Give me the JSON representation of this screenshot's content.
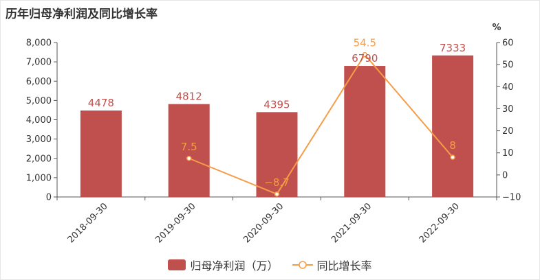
{
  "title": "历年归母净利润及同比增长率",
  "colors": {
    "bar": "#c0504d",
    "line": "#f59d47",
    "axis": "#555555",
    "grid": "#999999",
    "text": "#333333"
  },
  "chart_data": {
    "type": "bar+line",
    "categories": [
      "2018-09-30",
      "2019-09-30",
      "2020-09-30",
      "2021-09-30",
      "2022-09-30"
    ],
    "series": [
      {
        "name": "归母净利润（万）",
        "type": "bar",
        "axis": "left",
        "values": [
          4478,
          4812,
          4395,
          6790,
          7333
        ]
      },
      {
        "name": "同比增长率",
        "type": "line",
        "axis": "right",
        "values": [
          null,
          7.5,
          -8.7,
          54.5,
          8
        ]
      }
    ],
    "left_axis": {
      "min": 0,
      "max": 8000,
      "ticks": [
        "0",
        "1,000",
        "2,000",
        "3,000",
        "4,000",
        "5,000",
        "6,000",
        "7,000",
        "8,000"
      ]
    },
    "right_axis": {
      "unit": "%",
      "min": -10,
      "max": 60,
      "ticks": [
        "−10",
        "0",
        "10",
        "20",
        "30",
        "40",
        "50",
        "60"
      ]
    },
    "bar_labels": [
      "4478",
      "4812",
      "4395",
      "6790",
      "7333"
    ],
    "line_labels": [
      "",
      "7.5",
      "−8.7",
      "54.5",
      "8"
    ],
    "legend": {
      "position": "bottom-center"
    }
  }
}
